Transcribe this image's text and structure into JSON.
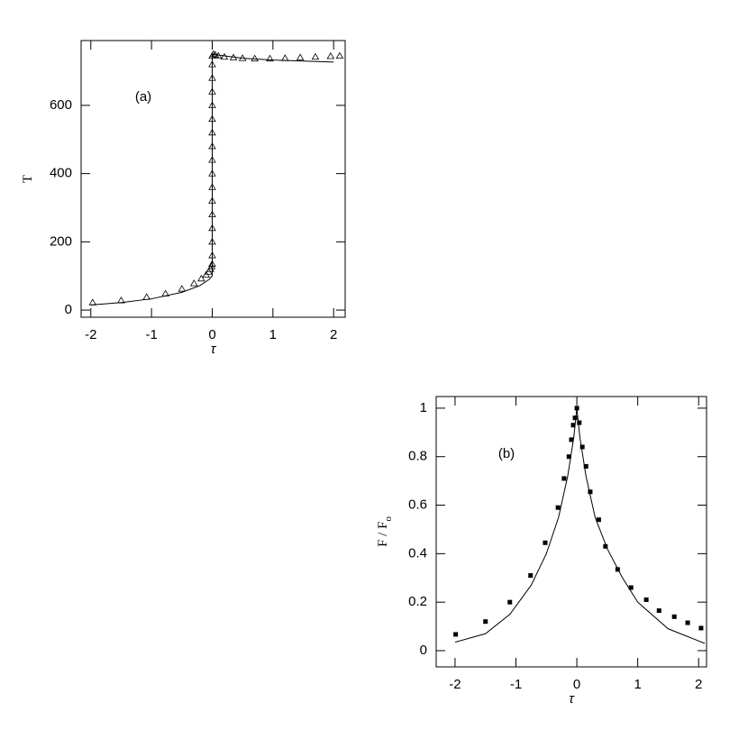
{
  "chart_data": [
    {
      "type": "scatter",
      "annotation": "(a)",
      "x_label": "τ",
      "y_label": "T",
      "xlim": [
        -2.16,
        2.19
      ],
      "ylim": [
        -21,
        790
      ],
      "xticks": [
        -2,
        -1,
        0,
        1,
        2
      ],
      "yticks": [
        0,
        200,
        400,
        600
      ],
      "series": [
        {
          "marker": "triangle",
          "color": "#000",
          "x": [
            -1.97,
            -1.5,
            -1.08,
            -0.77,
            -0.5,
            -0.3,
            -0.18,
            -0.1,
            -0.06,
            -0.03,
            -0.01,
            0,
            0,
            0,
            0,
            0,
            0,
            0,
            0,
            0,
            0,
            0,
            0,
            0,
            0,
            0,
            0,
            0,
            0.02,
            0.05,
            0.1,
            0.2,
            0.35,
            0.5,
            0.7,
            0.95,
            1.2,
            1.45,
            1.7,
            1.95,
            2.1
          ],
          "values": [
            22,
            28,
            38,
            48,
            62,
            78,
            92,
            103,
            112,
            120,
            128,
            135,
            160,
            200,
            240,
            280,
            320,
            360,
            400,
            440,
            480,
            520,
            560,
            600,
            640,
            680,
            720,
            745,
            750,
            748,
            745,
            742,
            740,
            738,
            737,
            737,
            738,
            740,
            742,
            744,
            745
          ]
        },
        {
          "marker": "line",
          "color": "#000",
          "x": [
            -2,
            -1.5,
            -1,
            -0.5,
            -0.2,
            -0.05,
            0,
            0,
            0.5,
            1,
            1.5,
            2
          ],
          "values": [
            15,
            22,
            33,
            52,
            72,
            90,
            100,
            750,
            738,
            733,
            730,
            727
          ]
        }
      ]
    },
    {
      "type": "scatter",
      "annotation": "(b)",
      "x_label": "τ",
      "y_label": "F / F",
      "y_label_subscript": "o",
      "xlim": [
        -2.31,
        2.13
      ],
      "ylim": [
        -0.067,
        1.048
      ],
      "xticks": [
        -2,
        -1,
        0,
        1,
        2
      ],
      "yticks": [
        0,
        0.2,
        0.4,
        0.6,
        0.8,
        1
      ],
      "series": [
        {
          "marker": "square",
          "color": "#000",
          "x": [
            -1.99,
            -1.5,
            -1.1,
            -0.76,
            -0.52,
            -0.31,
            -0.21,
            -0.13,
            -0.09,
            -0.06,
            -0.03,
            0,
            0.04,
            0.09,
            0.15,
            0.22,
            0.36,
            0.47,
            0.67,
            0.89,
            1.14,
            1.35,
            1.6,
            1.82,
            2.04
          ],
          "values": [
            0.067,
            0.12,
            0.2,
            0.31,
            0.445,
            0.59,
            0.71,
            0.8,
            0.87,
            0.93,
            0.96,
            1.0,
            0.94,
            0.84,
            0.76,
            0.655,
            0.54,
            0.43,
            0.335,
            0.26,
            0.21,
            0.165,
            0.14,
            0.115,
            0.093
          ]
        },
        {
          "marker": "line",
          "color": "#000",
          "x": [
            -2,
            -1.5,
            -1.1,
            -0.75,
            -0.5,
            -0.3,
            -0.15,
            -0.05,
            0,
            0.05,
            0.15,
            0.3,
            0.5,
            0.75,
            1,
            1.5,
            2,
            2.1
          ],
          "values": [
            0.035,
            0.07,
            0.15,
            0.27,
            0.4,
            0.55,
            0.72,
            0.88,
            1.0,
            0.88,
            0.72,
            0.55,
            0.42,
            0.3,
            0.2,
            0.09,
            0.04,
            0.03
          ]
        }
      ]
    }
  ]
}
